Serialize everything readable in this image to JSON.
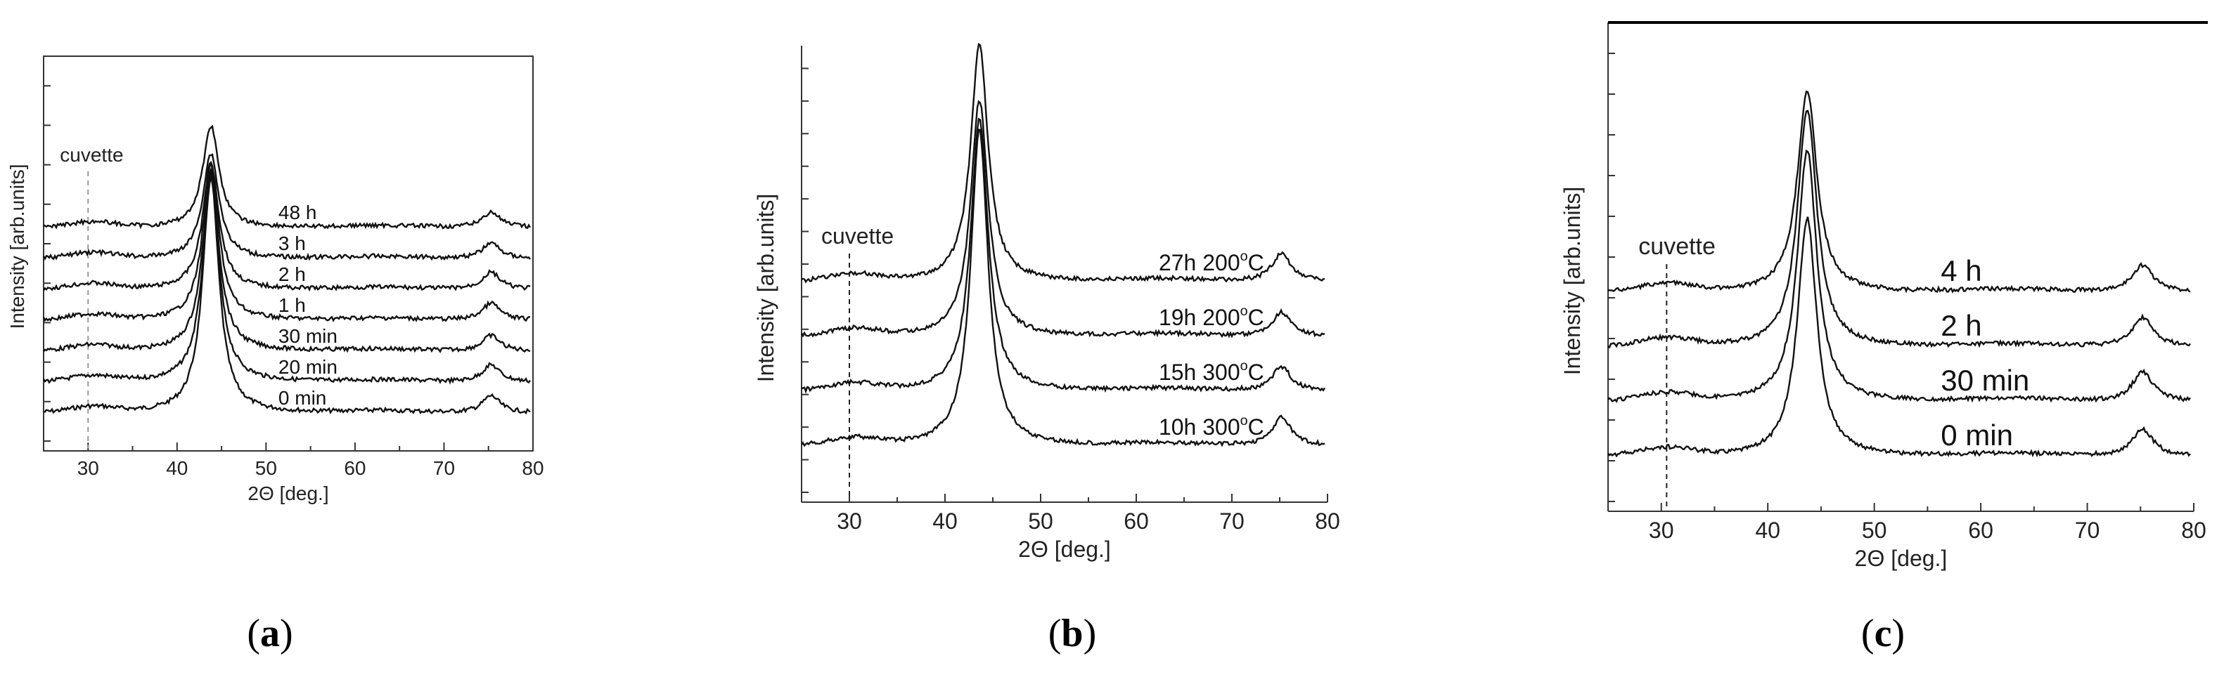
{
  "chart_data": [
    {
      "type": "line",
      "panel": "a",
      "caption": {
        "open": "(",
        "letter": "a",
        "close": ")"
      },
      "xlabel": "2Θ [deg.]",
      "ylabel": "Intensity [arb.units]",
      "xlim": [
        25,
        80
      ],
      "xticks": [
        "30",
        "40",
        "50",
        "60",
        "70",
        "80"
      ],
      "annotation": {
        "text": "cuvette",
        "x": 30
      },
      "main_peak_x": 43.8,
      "second_peak_x": 75.3,
      "series": [
        {
          "name": "0 min",
          "offset": 0,
          "peak_height": 7.6,
          "peak2_height": 0.55
        },
        {
          "name": "20 min",
          "offset": 1,
          "peak_height": 6.7,
          "peak2_height": 0.55
        },
        {
          "name": "30 min",
          "offset": 2,
          "peak_height": 5.8,
          "peak2_height": 0.5
        },
        {
          "name": "1 h",
          "offset": 3,
          "peak_height": 5.0,
          "peak2_height": 0.55
        },
        {
          "name": "2 h",
          "offset": 4,
          "peak_height": 4.1,
          "peak2_height": 0.55
        },
        {
          "name": "3 h",
          "offset": 5,
          "peak_height": 3.4,
          "peak2_height": 0.5
        },
        {
          "name": "48 h",
          "offset": 6,
          "peak_height": 3.3,
          "peak2_height": 0.5
        }
      ]
    },
    {
      "type": "line",
      "panel": "b",
      "caption": {
        "open": "(",
        "letter": "b",
        "close": ")"
      },
      "xlabel": "2Θ [deg.]",
      "ylabel": "Intensity [arb.units]",
      "xlim": [
        25,
        80
      ],
      "xticks": [
        "30",
        "40",
        "50",
        "60",
        "70",
        "80"
      ],
      "annotation": {
        "text": "cuvette",
        "x": 30
      },
      "main_peak_x": 43.6,
      "second_peak_x": 75.2,
      "series": [
        {
          "name": "10h 300",
          "deg": "o",
          "unit": "C",
          "offset": 0,
          "peak_height": 7.9,
          "peak2_height": 0.7
        },
        {
          "name": "15h 300",
          "deg": "o",
          "unit": "C",
          "offset": 1,
          "peak_height": 6.8,
          "peak2_height": 0.6
        },
        {
          "name": "19h 200",
          "deg": "o",
          "unit": "C",
          "offset": 2,
          "peak_height": 5.9,
          "peak2_height": 0.6
        },
        {
          "name": "27h 200",
          "deg": "o",
          "unit": "C",
          "offset": 3,
          "peak_height": 5.9,
          "peak2_height": 0.7
        }
      ]
    },
    {
      "type": "line",
      "panel": "c",
      "caption": {
        "open": "(",
        "letter": "c",
        "close": ")"
      },
      "xlabel": "2Θ [deg.]",
      "ylabel": "Intensity [arb.units]",
      "xlim": [
        25,
        80
      ],
      "xticks": [
        "30",
        "40",
        "50",
        "60",
        "70",
        "80"
      ],
      "annotation": {
        "text": "cuvette",
        "x": 30.5
      },
      "main_peak_x": 43.7,
      "second_peak_x": 75.2,
      "series": [
        {
          "name": "0 min",
          "offset": 0,
          "peak_height": 5.3,
          "peak2_height": 0.6
        },
        {
          "name": "30 min",
          "offset": 1,
          "peak_height": 5.6,
          "peak2_height": 0.65
        },
        {
          "name": "2 h",
          "offset": 2,
          "peak_height": 5.3,
          "peak2_height": 0.65
        },
        {
          "name": "4 h",
          "offset": 3,
          "peak_height": 4.5,
          "peak2_height": 0.6
        }
      ]
    }
  ]
}
